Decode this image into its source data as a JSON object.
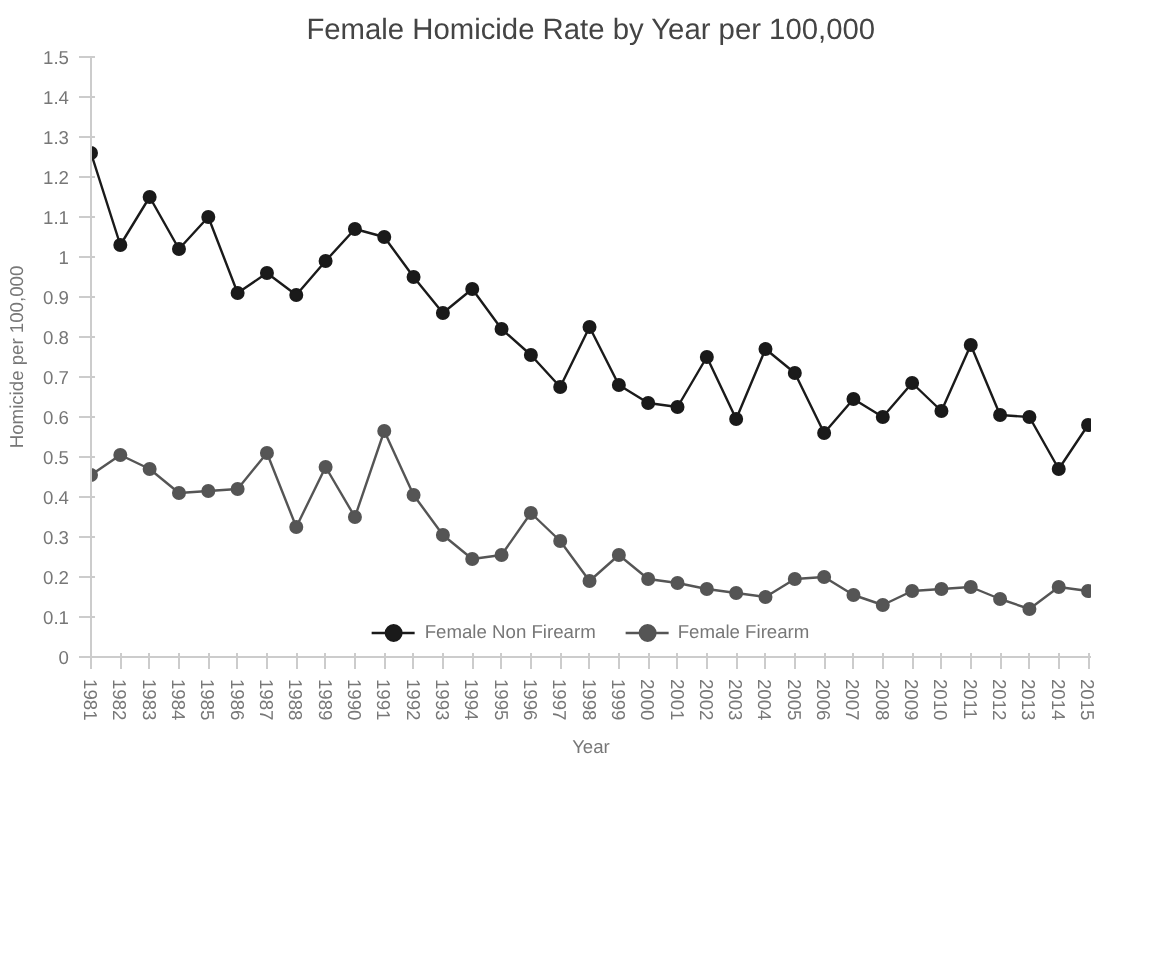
{
  "chart_data": {
    "type": "line",
    "title": "Female Homicide Rate by Year per 100,000",
    "xlabel": "Year",
    "ylabel": "Homicide per 100,000",
    "categories": [
      "1981",
      "1982",
      "1983",
      "1984",
      "1985",
      "1986",
      "1987",
      "1988",
      "1989",
      "1990",
      "1991",
      "1992",
      "1993",
      "1994",
      "1995",
      "1996",
      "1997",
      "1998",
      "1999",
      "2000",
      "2001",
      "2002",
      "2003",
      "2004",
      "2005",
      "2006",
      "2007",
      "2008",
      "2009",
      "2010",
      "2011",
      "2012",
      "2013",
      "2014",
      "2015"
    ],
    "series": [
      {
        "name": "Female Non Firearm",
        "color": "#1a1a1a",
        "values": [
          1.26,
          1.03,
          1.15,
          1.02,
          1.1,
          0.91,
          0.96,
          0.905,
          0.99,
          1.07,
          1.05,
          0.95,
          0.86,
          0.92,
          0.82,
          0.755,
          0.675,
          0.825,
          0.68,
          0.635,
          0.625,
          0.75,
          0.595,
          0.77,
          0.71,
          0.56,
          0.645,
          0.6,
          0.685,
          0.615,
          0.78,
          0.605,
          0.6,
          0.47,
          0.58
        ]
      },
      {
        "name": "Female Firearm",
        "color": "#555555",
        "values": [
          0.455,
          0.505,
          0.47,
          0.41,
          0.415,
          0.42,
          0.51,
          0.325,
          0.475,
          0.35,
          0.565,
          0.405,
          0.305,
          0.245,
          0.255,
          0.36,
          0.29,
          0.19,
          0.255,
          0.195,
          0.185,
          0.17,
          0.16,
          0.15,
          0.195,
          0.2,
          0.155,
          0.13,
          0.165,
          0.17,
          0.175,
          0.145,
          0.12,
          0.175,
          0.165
        ]
      }
    ],
    "ylim": [
      0,
      1.5
    ],
    "yticks": [
      0,
      0.1,
      0.2,
      0.3,
      0.4,
      0.5,
      0.6,
      0.7,
      0.8,
      0.9,
      1,
      1.1,
      1.2,
      1.3,
      1.4,
      1.5
    ],
    "grid": false,
    "legend": "bottom",
    "marker": "circle",
    "line_style": "solid"
  }
}
